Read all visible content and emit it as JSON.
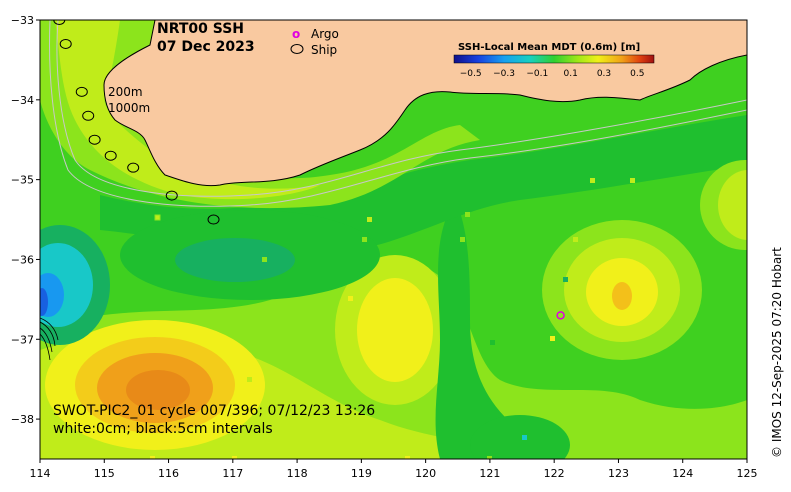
{
  "title": {
    "line1": "NRT00 SSH",
    "line2": "07 Dec 2023"
  },
  "legend": {
    "argo_symbol": "o",
    "argo_label": "Argo",
    "argo_color": "#e000e0",
    "ship_label": "Ship"
  },
  "colorbar": {
    "title": "SSH-Local Mean MDT (0.6m) [m]",
    "ticks": [
      "-0.5",
      "-0.3",
      "-0.1",
      "0.1",
      "0.3",
      "0.5"
    ]
  },
  "isobaths": {
    "shallow": "200m",
    "deep": "1000m"
  },
  "swot": {
    "line1": "SWOT-PIC2_01 cycle 007/396; 07/12/23 13:26",
    "line2": "white:0cm; black:5cm intervals"
  },
  "credit": "© IMOS 12-Sep-2025 07:20 Hobart",
  "axes": {
    "x_ticks": [
      "114",
      "115",
      "116",
      "117",
      "118",
      "119",
      "120",
      "121",
      "122",
      "123",
      "124",
      "125"
    ],
    "y_ticks": [
      "−33",
      "−34",
      "−35",
      "−36",
      "−37",
      "−38"
    ],
    "x_range": [
      114,
      125
    ],
    "y_range": [
      -38.5,
      -33
    ]
  },
  "argo_float": {
    "lon": 122.1,
    "lat": -36.7
  },
  "ship_track": [
    {
      "lon": 114.3,
      "lat": -33.0
    },
    {
      "lon": 114.4,
      "lat": -33.3
    },
    {
      "lon": 114.65,
      "lat": -33.9
    },
    {
      "lon": 114.75,
      "lat": -34.2
    },
    {
      "lon": 114.85,
      "lat": -34.5
    },
    {
      "lon": 115.1,
      "lat": -34.7
    },
    {
      "lon": 115.45,
      "lat": -34.85
    },
    {
      "lon": 116.05,
      "lat": -35.2
    },
    {
      "lon": 116.7,
      "lat": -35.5
    }
  ],
  "colors": {
    "land": "#f9c9a0",
    "green_dark": "#1fbf2f",
    "green_mid": "#3fd020",
    "green_light": "#7be01c",
    "yellow_green": "#c0ec1a",
    "yellow": "#f1f01a",
    "orange": "#f0a01a",
    "cyan": "#18c8c8",
    "blue": "#1878f0"
  }
}
